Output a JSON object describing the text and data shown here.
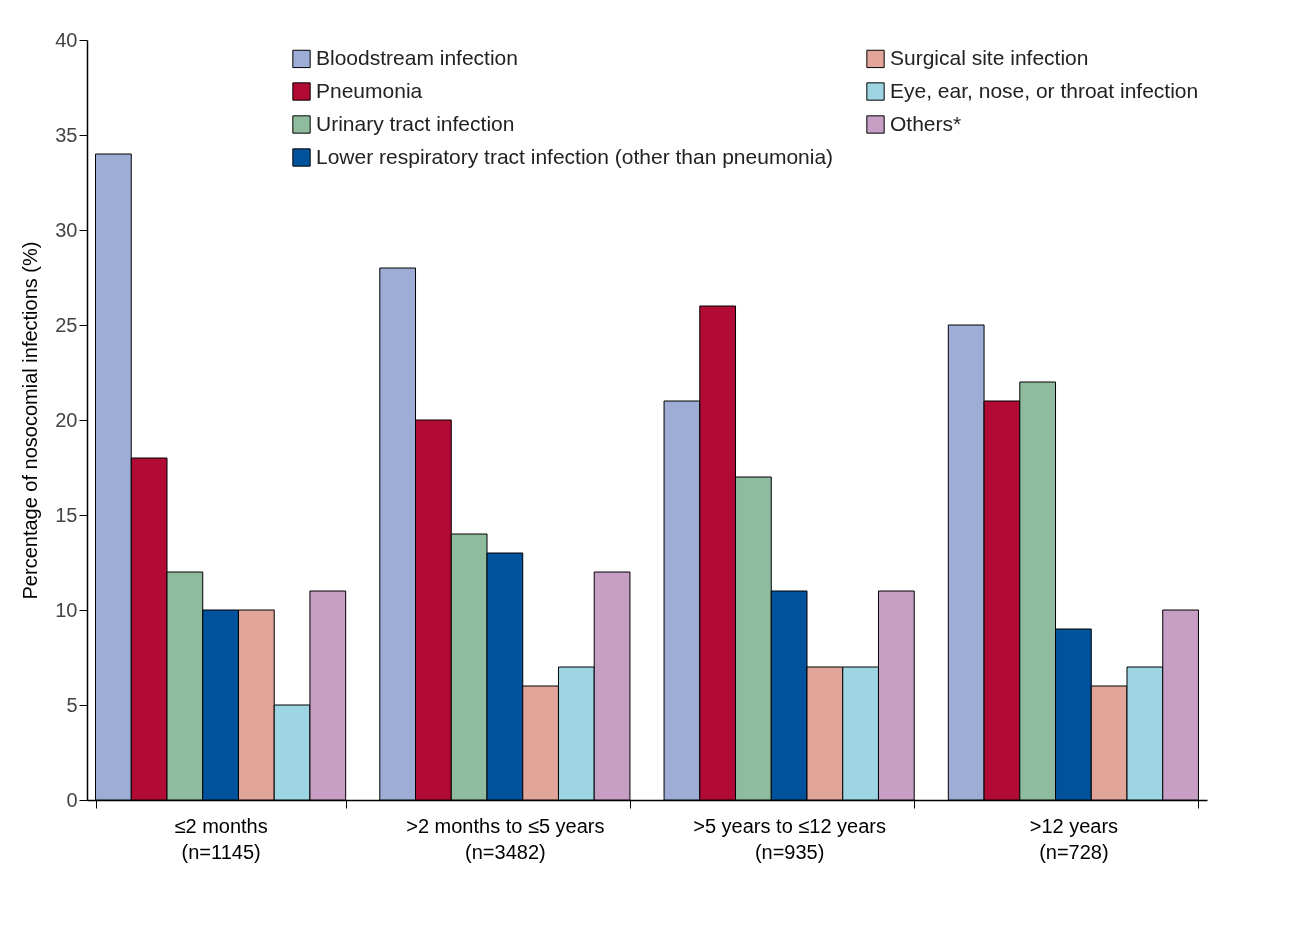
{
  "chart_data": {
    "type": "bar",
    "ylabel": "Percentage of nosocomial infections (%)",
    "categories": [
      "≤2 months\n(n=1145)",
      ">2 months to ≤5 years\n(n=3482)",
      ">5 years to ≤12 years\n(n=935)",
      ">12 years\n(n=728)"
    ],
    "series": [
      {
        "name": "Bloodstream infection",
        "color": "#9dadd6",
        "values": [
          34,
          28,
          21,
          25
        ]
      },
      {
        "name": "Pneumonia",
        "color": "#b10a35",
        "values": [
          18,
          20,
          26,
          21
        ]
      },
      {
        "name": "Urinary tract infection",
        "color": "#8fbc9f",
        "values": [
          12,
          14,
          17,
          22
        ]
      },
      {
        "name": "Lower respiratory tract infection (other than pneumonia)",
        "color": "#00529c",
        "values": [
          10,
          13,
          11,
          9
        ]
      },
      {
        "name": "Surgical site infection",
        "color": "#e2a59a",
        "values": [
          10,
          6,
          7,
          6
        ]
      },
      {
        "name": "Eye, ear, nose, or throat infection",
        "color": "#9dd5e3",
        "values": [
          5,
          7,
          7,
          7
        ]
      },
      {
        "name": "Others*",
        "color": "#c79fc4",
        "values": [
          11,
          12,
          11,
          10
        ]
      }
    ],
    "ylim": [
      0,
      40
    ],
    "yticks": [
      0,
      5,
      10,
      15,
      20,
      25,
      30,
      35,
      40
    ],
    "grid": false,
    "legend": "top right"
  }
}
